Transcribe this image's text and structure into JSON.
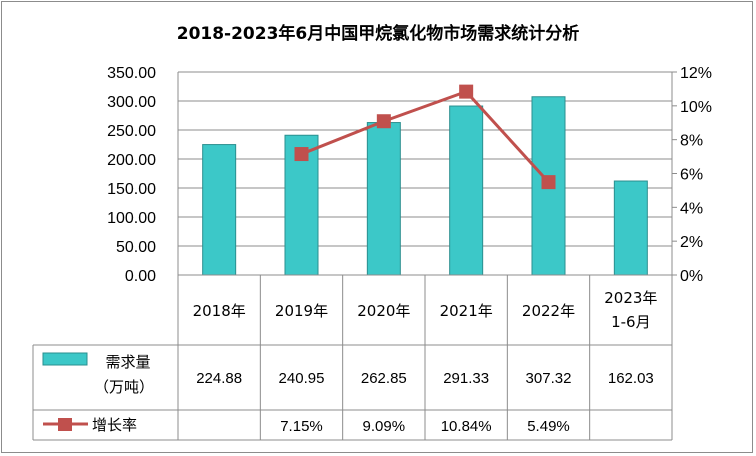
{
  "chart_data": {
    "type": "bar",
    "title": "2018-2023年6月中国甲烷氯化物市场需求统计分析",
    "categories": [
      "2018年",
      "2019年",
      "2020年",
      "2021年",
      "2022年",
      "2023年\n1-6月"
    ],
    "series": [
      {
        "name": "需求量（万吨）",
        "type": "bar",
        "axis": "left",
        "color": "#3CC8C8",
        "values": [
          224.88,
          240.95,
          262.85,
          291.33,
          307.32,
          162.03
        ],
        "labels": [
          "224.88",
          "240.95",
          "262.85",
          "291.33",
          "307.32",
          "162.03"
        ]
      },
      {
        "name": "增长率",
        "type": "line",
        "axis": "right",
        "color": "#C0504D",
        "values": [
          null,
          7.15,
          9.09,
          10.84,
          5.49,
          null
        ],
        "labels": [
          "",
          "7.15%",
          "9.09%",
          "10.84%",
          "5.49%",
          ""
        ]
      }
    ],
    "y_left": {
      "min": 0,
      "max": 350,
      "step": 50,
      "tick_labels": [
        "0.00",
        "50.00",
        "100.00",
        "150.00",
        "200.00",
        "250.00",
        "300.00",
        "350.00"
      ]
    },
    "y_right": {
      "min": 0,
      "max": 12,
      "step": 2,
      "tick_labels": [
        "0%",
        "2%",
        "4%",
        "6%",
        "8%",
        "10%",
        "12%"
      ]
    },
    "legend_labels": {
      "bar_line1": "需求量",
      "bar_line2": "（万吨）",
      "line": "增长率"
    },
    "grid": true,
    "legend_placement": "data-table"
  }
}
